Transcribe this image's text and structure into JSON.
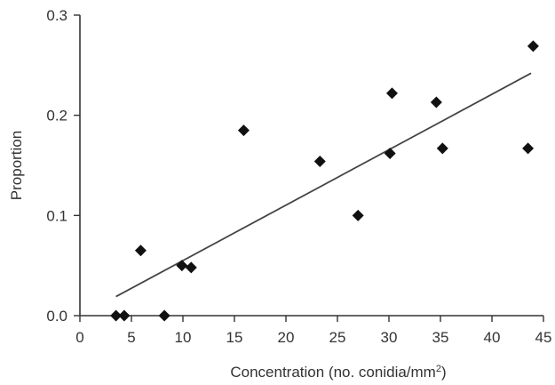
{
  "chart_data": {
    "type": "scatter",
    "title": "",
    "xlabel": "Concentration (no. conidia/mm",
    "xlabel_superscript": "2",
    "xlabel_suffix": ")",
    "ylabel": "Proportion",
    "xlim": [
      0,
      45
    ],
    "ylim": [
      0,
      0.3
    ],
    "x_ticks": [
      0,
      5,
      10,
      15,
      20,
      25,
      30,
      35,
      40,
      45
    ],
    "x_tick_labels": [
      "0",
      "5",
      "10",
      "15",
      "20",
      "25",
      "30",
      "35",
      "40",
      "45"
    ],
    "y_ticks": [
      0,
      0.1,
      0.2,
      0.3
    ],
    "y_tick_labels": [
      "0.0",
      "0.1",
      "0.2",
      "0.3"
    ],
    "grid": false,
    "legend": "none",
    "marker": "diamond",
    "colors": {
      "marker": "#111111",
      "axis": "#333333",
      "fit_line": "#444444"
    },
    "points": [
      {
        "x": 3.5,
        "y": 0.0
      },
      {
        "x": 4.3,
        "y": 0.0
      },
      {
        "x": 5.9,
        "y": 0.065
      },
      {
        "x": 8.2,
        "y": 0.0
      },
      {
        "x": 9.9,
        "y": 0.05
      },
      {
        "x": 10.8,
        "y": 0.048
      },
      {
        "x": 15.9,
        "y": 0.185
      },
      {
        "x": 23.3,
        "y": 0.154
      },
      {
        "x": 27.0,
        "y": 0.1
      },
      {
        "x": 30.1,
        "y": 0.162
      },
      {
        "x": 30.3,
        "y": 0.222
      },
      {
        "x": 34.6,
        "y": 0.213
      },
      {
        "x": 35.2,
        "y": 0.167
      },
      {
        "x": 43.5,
        "y": 0.167
      },
      {
        "x": 44.0,
        "y": 0.269
      }
    ],
    "fit_line": {
      "x": [
        3.5,
        43.8
      ],
      "y": [
        0.019,
        0.242
      ]
    }
  }
}
